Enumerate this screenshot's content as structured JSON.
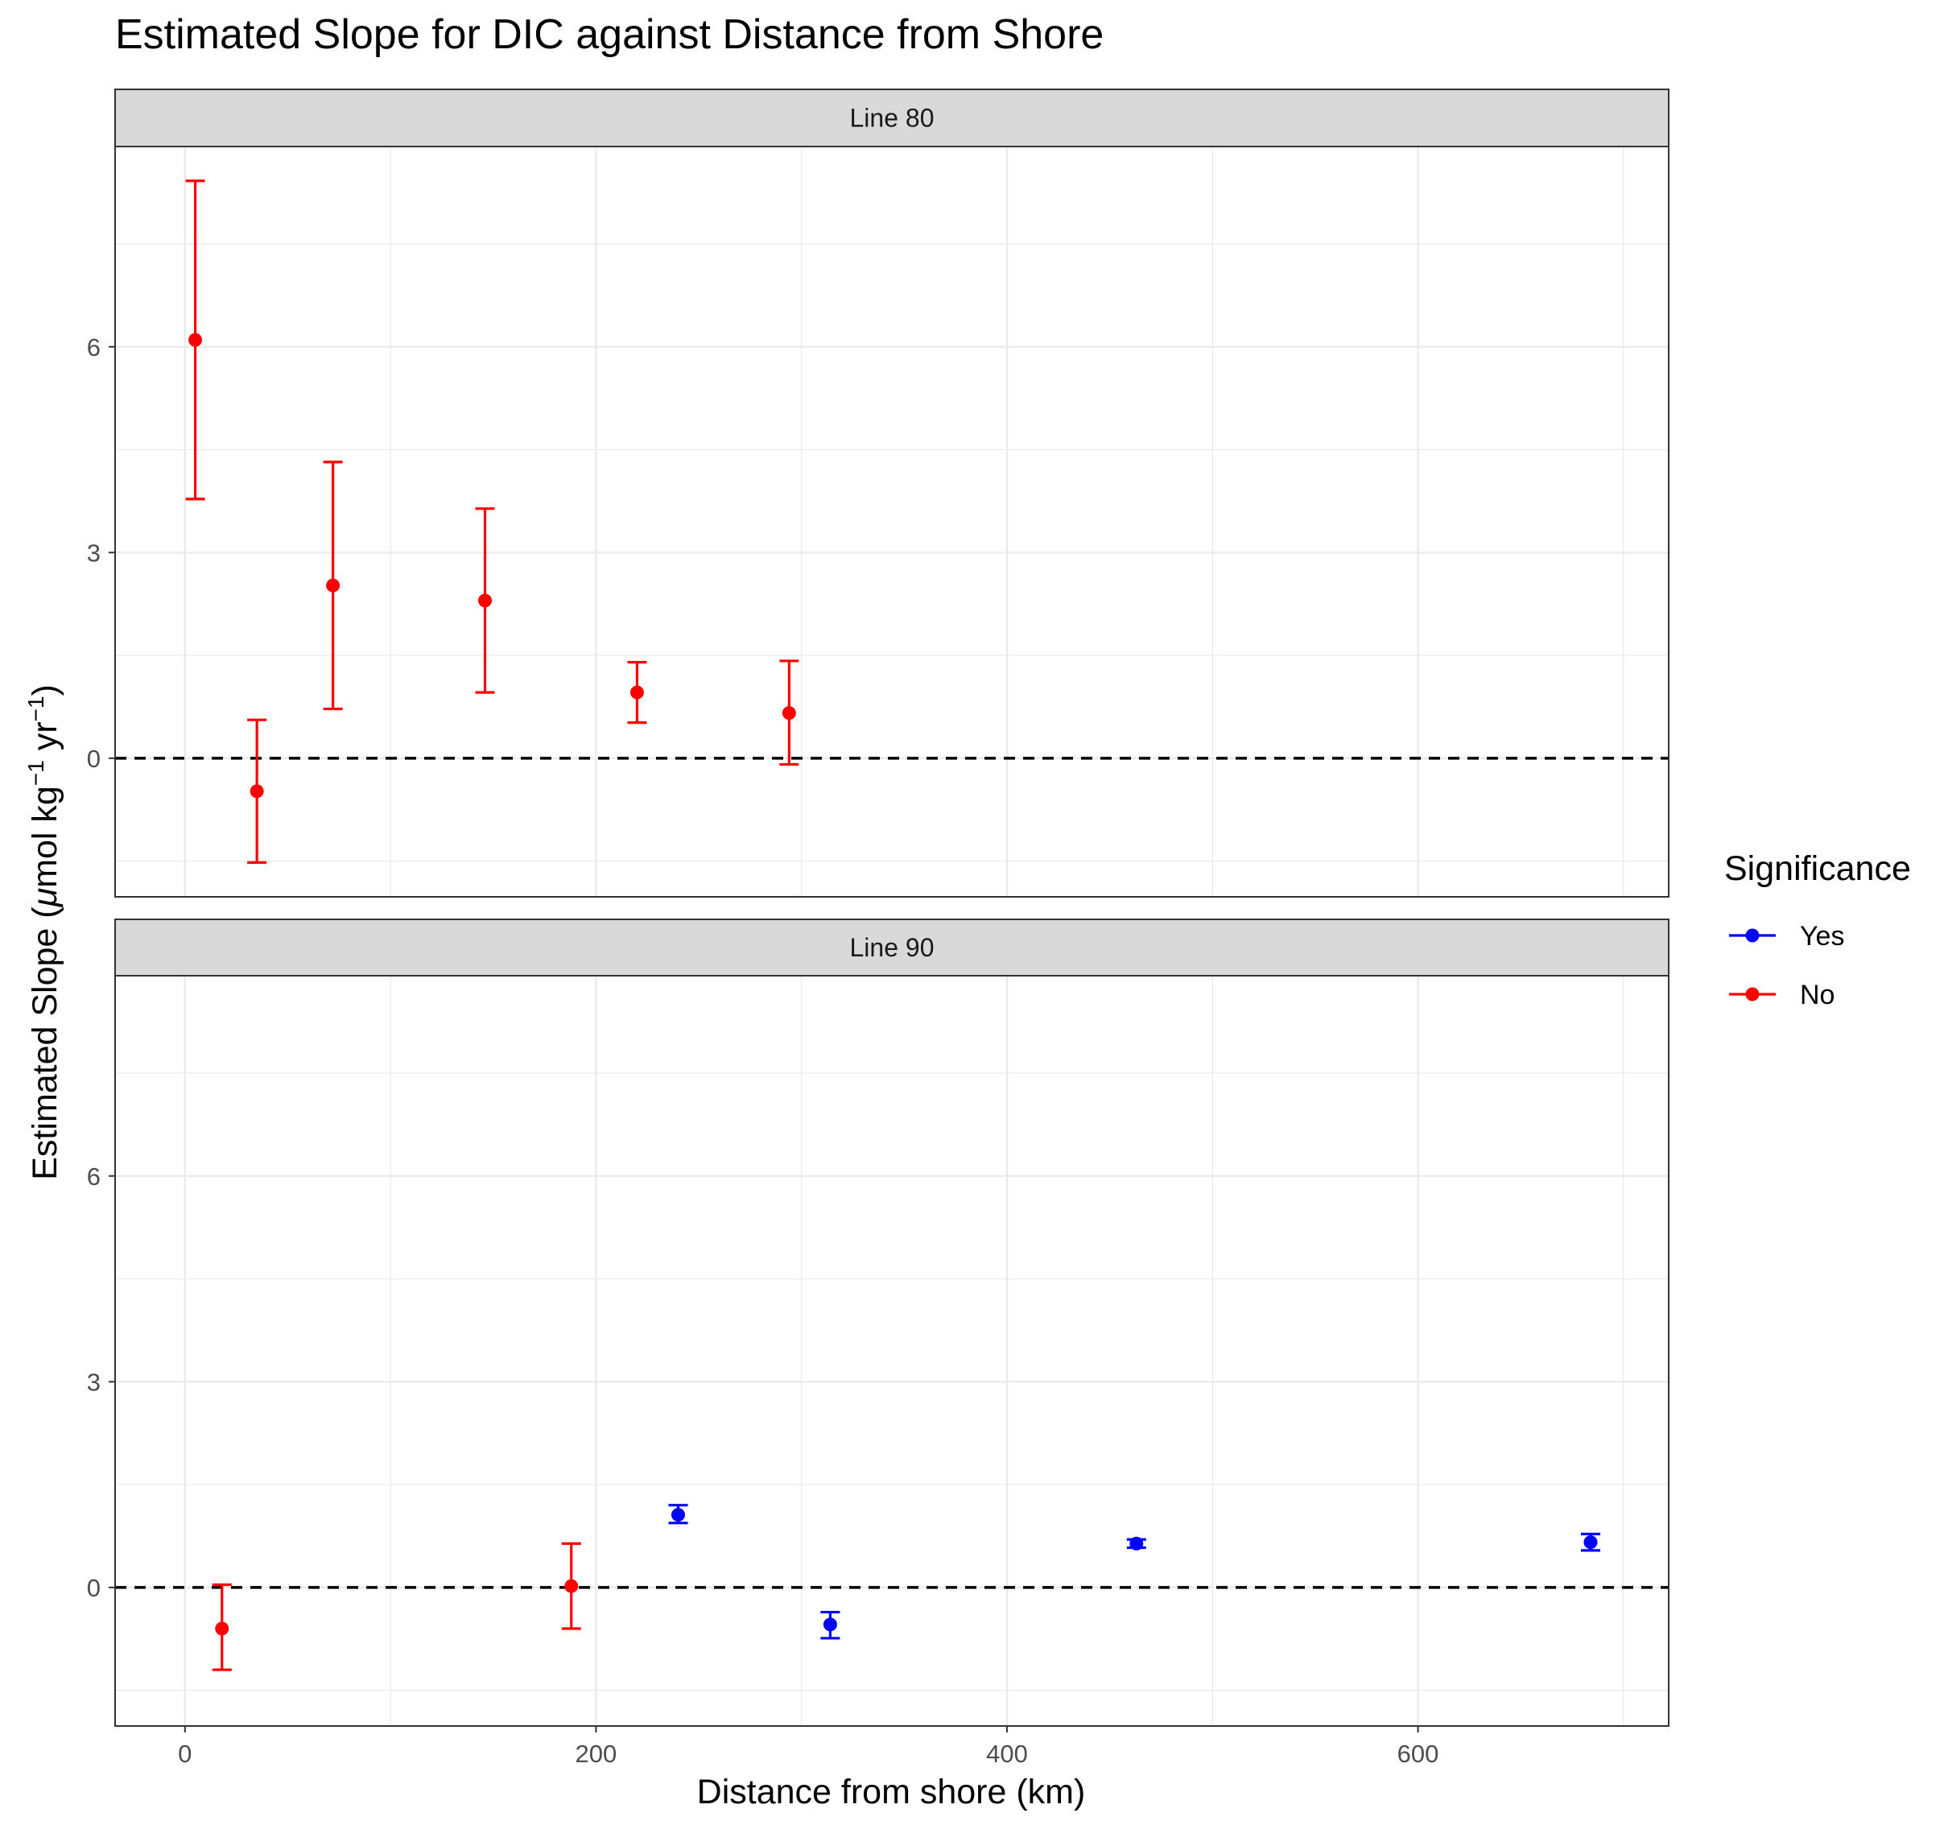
{
  "chart_data": {
    "type": "scatter",
    "title": "Estimated Slope for DIC against Distance from Shore",
    "xlabel": "Distance from shore (km)",
    "ylabel": {
      "prefix": "Estimated Slope (",
      "mu": "μ",
      "mol": "mol kg",
      "exp1": "−1",
      "yr": " yr",
      "exp2": "−1",
      "suffix": ")"
    },
    "xlim": [
      -34,
      722
    ],
    "ylim": [
      -2.02,
      8.92
    ],
    "xticks": [
      0,
      200,
      400,
      600
    ],
    "yticks": [
      0,
      3,
      6
    ],
    "grid": true,
    "reference_line_y": 0,
    "legend": {
      "title": "Significance",
      "position": "right",
      "entries": [
        {
          "label": "Yes",
          "color": "#0000ff"
        },
        {
          "label": "No",
          "color": "#ff0000"
        }
      ]
    },
    "panels": [
      {
        "label": "Line 80",
        "points": [
          {
            "x": 5,
            "y": 6.1,
            "ymin": 3.78,
            "ymax": 8.42,
            "sig": "No"
          },
          {
            "x": 35,
            "y": -0.48,
            "ymin": -1.52,
            "ymax": 0.56,
            "sig": "No"
          },
          {
            "x": 72,
            "y": 2.52,
            "ymin": 0.72,
            "ymax": 4.32,
            "sig": "No"
          },
          {
            "x": 146,
            "y": 2.3,
            "ymin": 0.96,
            "ymax": 3.64,
            "sig": "No"
          },
          {
            "x": 220,
            "y": 0.96,
            "ymin": 0.52,
            "ymax": 1.4,
            "sig": "No"
          },
          {
            "x": 294,
            "y": 0.66,
            "ymin": -0.09,
            "ymax": 1.42,
            "sig": "No"
          }
        ]
      },
      {
        "label": "Line 90",
        "points": [
          {
            "x": 18,
            "y": -0.6,
            "ymin": -1.2,
            "ymax": 0.04,
            "sig": "No"
          },
          {
            "x": 188,
            "y": 0.02,
            "ymin": -0.6,
            "ymax": 0.64,
            "sig": "No"
          },
          {
            "x": 240,
            "y": 1.06,
            "ymin": 0.94,
            "ymax": 1.2,
            "sig": "Yes"
          },
          {
            "x": 314,
            "y": -0.54,
            "ymin": -0.74,
            "ymax": -0.36,
            "sig": "Yes"
          },
          {
            "x": 463,
            "y": 0.64,
            "ymin": 0.58,
            "ymax": 0.7,
            "sig": "Yes"
          },
          {
            "x": 684,
            "y": 0.66,
            "ymin": 0.54,
            "ymax": 0.78,
            "sig": "Yes"
          }
        ]
      }
    ]
  },
  "colors": {
    "yes": "#0000ff",
    "no": "#ff0000",
    "strip": "#d9d9d9",
    "grid": "#ebebeb",
    "axis_text": "#4d4d4d"
  }
}
